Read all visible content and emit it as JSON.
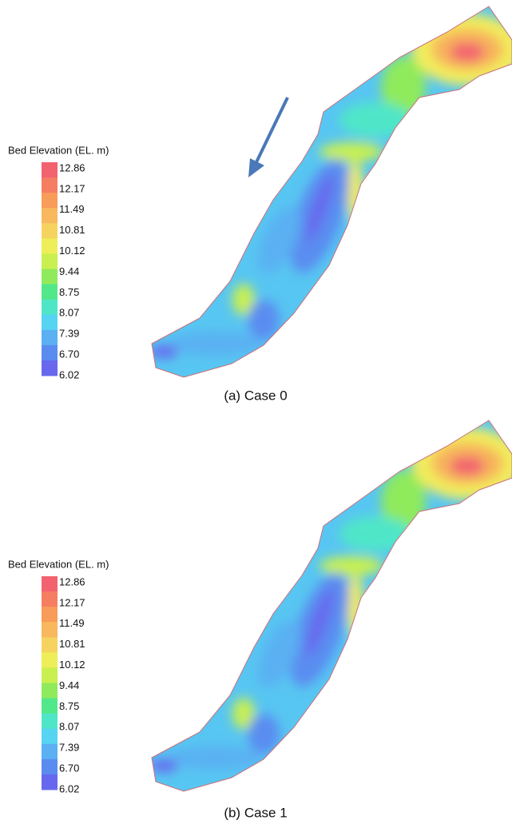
{
  "panels": [
    {
      "legend_title": "Bed Elevation (EL. m)",
      "legend_labels": [
        "12.86",
        "12.17",
        "11.49",
        "10.81",
        "10.12",
        "9.44",
        "8.75",
        "8.07",
        "7.39",
        "6.70",
        "6.02"
      ],
      "caption": "(a)  Case  0"
    },
    {
      "legend_title": "Bed Elevation (EL. m)",
      "legend_labels": [
        "12.86",
        "12.17",
        "11.49",
        "10.81",
        "10.12",
        "9.44",
        "8.75",
        "8.07",
        "7.39",
        "6.70",
        "6.02"
      ],
      "caption": "(b)  Case  1"
    }
  ]
}
